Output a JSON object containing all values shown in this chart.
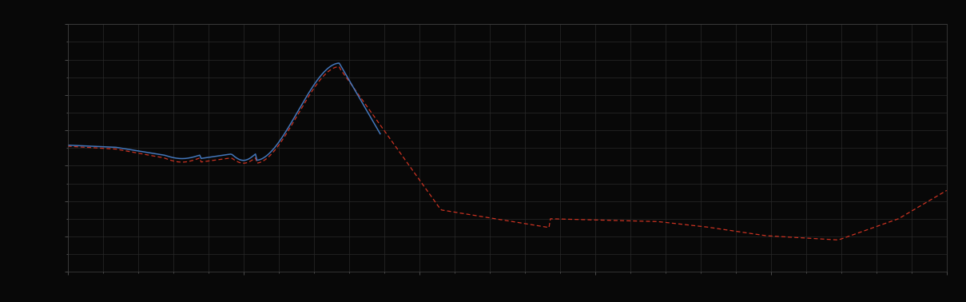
{
  "background_color": "#080808",
  "plot_bg_color": "#080808",
  "grid_color": "#2a2a2a",
  "blue_line_color": "#4477bb",
  "red_line_color": "#cc3322",
  "figsize": [
    12.09,
    3.78
  ],
  "dpi": 100,
  "xlim": [
    0,
    365
  ],
  "ylim": [
    0,
    7
  ],
  "tick_color": "#666666",
  "tick_fontsize": 6,
  "spine_color": "#444444",
  "major_x_interval": 73,
  "minor_x_interval": 14.6,
  "major_y_interval": 1,
  "minor_y_interval": 0.5
}
